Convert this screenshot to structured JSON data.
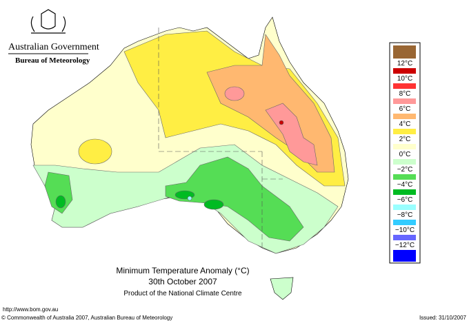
{
  "header": {
    "government": "Australian Government",
    "bureau": "Bureau of Meteorology"
  },
  "legend": {
    "labels": [
      "12°C",
      "10°C",
      "8°C",
      "6°C",
      "4°C",
      "2°C",
      "0°C",
      "−2°C",
      "−4°C",
      "−6°C",
      "−8°C",
      "−10°C",
      "−12°C"
    ],
    "colors": [
      "#996633",
      "#cc0000",
      "#ff3333",
      "#ff9999",
      "#ffb870",
      "#ffee44",
      "#ffffcc",
      "#ccffcc",
      "#55dd55",
      "#00bb22",
      "#99ffff",
      "#33ccff",
      "#6666ff",
      "#0000ff"
    ]
  },
  "map": {
    "title": "Minimum Temperature Anomaly (°C)",
    "date": "30th October 2007",
    "credit": "Product of the National Climate Centre"
  },
  "footer": {
    "url": "http://www.bom.gov.au",
    "copyright": "© Commonwealth of Australia 2007, Australian Bureau of Meteorology",
    "issued": "Issued: 31/10/2007"
  }
}
